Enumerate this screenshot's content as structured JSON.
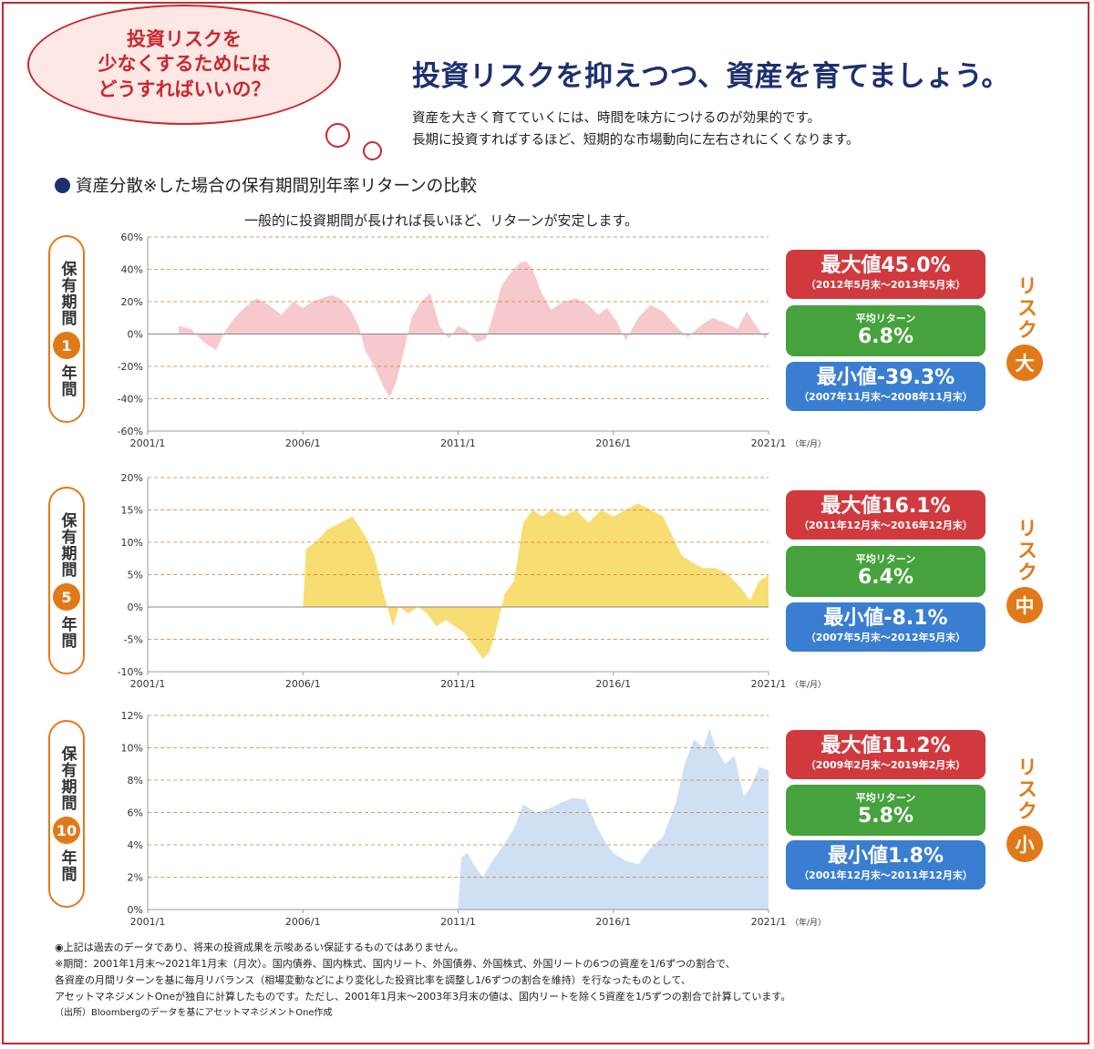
{
  "bubble": {
    "text": "投資リスクを\n少なくするためには\nどうすればいいの？"
  },
  "headline": "投資リスクを抑えつつ、資産を育てましょう。",
  "subtext": [
    "資産を大きく育てていくには、時間を味方につけるのが効果的です。",
    "長期に投資すればするほど、短期的な市場動向に左右されにくくなります。"
  ],
  "section_title": "資産分散※した場合の保有期間別年率リターンの比較",
  "chart_caption": "一般的に投資期間が長ければ長いほど、リターンが安定します。",
  "colors": {
    "red": "#c8282d",
    "navy": "#1d2f6f",
    "orange": "#e07a18",
    "max": "#d03a3e",
    "avg": "#46a23c",
    "min": "#3a7ed1"
  },
  "panels": [
    {
      "label_top": "保有期間",
      "label_num": "1",
      "label_bottom": "年間",
      "max": {
        "title": "最大値45.0%",
        "period": "（2012年5月末～2013年5月末）"
      },
      "avg": {
        "title": "平均リターン",
        "value": "6.8%"
      },
      "min": {
        "title": "最小値-39.3%",
        "period": "（2007年11月末～2008年11月末）"
      },
      "risk_label": "リスク",
      "risk_level": "大"
    },
    {
      "label_top": "保有期間",
      "label_num": "5",
      "label_bottom": "年間",
      "max": {
        "title": "最大値16.1%",
        "period": "（2011年12月末～2016年12月末）"
      },
      "avg": {
        "title": "平均リターン",
        "value": "6.4%"
      },
      "min": {
        "title": "最小値-8.1%",
        "period": "（2007年5月末～2012年5月末）"
      },
      "risk_label": "リスク",
      "risk_level": "中"
    },
    {
      "label_top": "保有期間",
      "label_num": "10",
      "label_bottom": "年間",
      "max": {
        "title": "最大値11.2%",
        "period": "（2009年2月末～2019年2月末）"
      },
      "avg": {
        "title": "平均リターン",
        "value": "5.8%"
      },
      "min": {
        "title": "最小値1.8%",
        "period": "（2001年12月末～2011年12月末）"
      },
      "risk_label": "リスク",
      "risk_level": "小"
    }
  ],
  "notes": [
    "◉上記は過去のデータであり、将来の投資成果を示唆あるい保証するものではありません。",
    "※期間：2001年1月末～2021年1月末（月次）。国内債券、国内株式、国内リート、外国債券、外国株式、外国リートの6つの資産を1/6ずつの割合で、",
    "各資産の月間リターンを基に毎月リバランス（相場変動などにより変化した投資比率を調整し1/6ずつの割合を維持）を行なったものとして、",
    "アセットマネジメントOneが独自に計算したものです。ただし、2001年1月末～2003年3月末の値は、国内リートを除く5資産を1/5ずつの割合で計算しています。"
  ],
  "source": "（出所）Bloombergのデータを基にアセットマネジメントOne作成",
  "chart_data": [
    {
      "type": "area",
      "title": "保有期間1年間",
      "x_ticks": [
        "2001/1",
        "2006/1",
        "2011/1",
        "2016/1",
        "2021/1"
      ],
      "x_unit": "（年/月）",
      "xlim": [
        2001.0,
        2021.0
      ],
      "ylim": [
        -60,
        60
      ],
      "y_ticks": [
        60,
        40,
        20,
        0,
        -20,
        -40,
        -60
      ],
      "y_tick_labels": [
        "60%",
        "40%",
        "20%",
        "0%",
        "-20%",
        "-40%",
        "-60%"
      ],
      "color": "#f6c9cd",
      "grid": "dashed",
      "x": [
        2002.0,
        2002.4,
        2002.8,
        2003.2,
        2003.5,
        2003.8,
        2004.1,
        2004.5,
        2004.9,
        2005.3,
        2005.7,
        2006.0,
        2006.3,
        2006.6,
        2006.9,
        2007.2,
        2007.5,
        2007.8,
        2008.0,
        2008.3,
        2008.6,
        2008.8,
        2009.0,
        2009.2,
        2009.5,
        2009.8,
        2010.1,
        2010.4,
        2010.7,
        2011.0,
        2011.3,
        2011.6,
        2011.9,
        2012.1,
        2012.4,
        2012.7,
        2013.0,
        2013.2,
        2013.4,
        2013.7,
        2014.0,
        2014.4,
        2014.8,
        2015.2,
        2015.5,
        2015.8,
        2016.1,
        2016.4,
        2016.8,
        2017.2,
        2017.6,
        2018.0,
        2018.4,
        2018.8,
        2019.2,
        2019.6,
        2020.0,
        2020.3,
        2020.6,
        2020.9,
        2021.0
      ],
      "y": [
        5,
        3,
        -5,
        -10,
        2,
        10,
        16,
        22,
        18,
        12,
        20,
        16,
        20,
        22,
        24,
        22,
        16,
        5,
        -10,
        -20,
        -33,
        -39,
        -30,
        -15,
        10,
        20,
        25,
        5,
        -3,
        5,
        2,
        -5,
        -3,
        10,
        30,
        38,
        44,
        45,
        40,
        25,
        15,
        20,
        22,
        18,
        12,
        16,
        8,
        -4,
        10,
        18,
        14,
        5,
        -2,
        5,
        10,
        7,
        3,
        14,
        5,
        -3,
        2
      ]
    },
    {
      "type": "area",
      "title": "保有期間5年間",
      "x_ticks": [
        "2001/1",
        "2006/1",
        "2011/1",
        "2016/1",
        "2021/1"
      ],
      "x_unit": "（年/月）",
      "xlim": [
        2001.0,
        2021.0
      ],
      "ylim": [
        -10,
        20
      ],
      "y_ticks": [
        20,
        15,
        10,
        5,
        0,
        -5,
        -10
      ],
      "y_tick_labels": [
        "20%",
        "15%",
        "10%",
        "5%",
        "0%",
        "-5%",
        "-10%"
      ],
      "color": "#f7dd72",
      "grid": "dashed",
      "x": [
        2006.0,
        2006.1,
        2006.4,
        2006.8,
        2007.2,
        2007.6,
        2008.0,
        2008.3,
        2008.6,
        2008.9,
        2009.1,
        2009.4,
        2009.7,
        2010.0,
        2010.3,
        2010.6,
        2010.9,
        2011.2,
        2011.5,
        2011.8,
        2012.0,
        2012.2,
        2012.5,
        2012.8,
        2013.1,
        2013.4,
        2013.7,
        2014.0,
        2014.4,
        2014.8,
        2015.2,
        2015.6,
        2016.0,
        2016.4,
        2016.8,
        2017.2,
        2017.6,
        2018.0,
        2018.2,
        2018.5,
        2018.9,
        2019.3,
        2019.7,
        2020.1,
        2020.4,
        2020.7,
        2021.0
      ],
      "y": [
        0,
        9,
        10,
        12,
        13,
        14,
        11,
        8,
        2,
        -3,
        0,
        -1,
        0,
        -1,
        -3,
        -2,
        -3,
        -4,
        -6,
        -8,
        -7,
        -4,
        2,
        4,
        13,
        15,
        14,
        15,
        14,
        15,
        13,
        15,
        14,
        15,
        16,
        15,
        14,
        10,
        8,
        7,
        6,
        6,
        5,
        3,
        1,
        4,
        5
      ]
    },
    {
      "type": "area",
      "title": "保有期間10年間",
      "x_ticks": [
        "2001/1",
        "2006/1",
        "2011/1",
        "2016/1",
        "2021/1"
      ],
      "x_unit": "（年/月）",
      "xlim": [
        2001.0,
        2021.0
      ],
      "ylim": [
        0,
        12
      ],
      "y_ticks": [
        12,
        10,
        8,
        6,
        4,
        2,
        0
      ],
      "y_tick_labels": [
        "12%",
        "10%",
        "8%",
        "6%",
        "4%",
        "2%",
        "0%"
      ],
      "color": "#cfe0f5",
      "grid": "dashed",
      "x": [
        2011.0,
        2011.1,
        2011.3,
        2011.5,
        2011.8,
        2012.1,
        2012.4,
        2012.8,
        2013.1,
        2013.5,
        2013.9,
        2014.3,
        2014.7,
        2015.1,
        2015.5,
        2015.8,
        2016.0,
        2016.4,
        2016.8,
        2017.2,
        2017.6,
        2018.0,
        2018.3,
        2018.6,
        2018.9,
        2019.1,
        2019.3,
        2019.6,
        2019.9,
        2020.2,
        2020.4,
        2020.7,
        2021.0
      ],
      "y": [
        0,
        3.2,
        3.5,
        2.8,
        2.0,
        3.0,
        3.8,
        5.0,
        6.5,
        6.0,
        6.2,
        6.6,
        6.9,
        6.8,
        5.0,
        4.0,
        3.5,
        3.0,
        2.8,
        3.8,
        4.5,
        6.5,
        9.0,
        10.5,
        10.0,
        11.2,
        10.0,
        9.0,
        9.5,
        7.0,
        7.5,
        8.8,
        8.6
      ]
    }
  ]
}
